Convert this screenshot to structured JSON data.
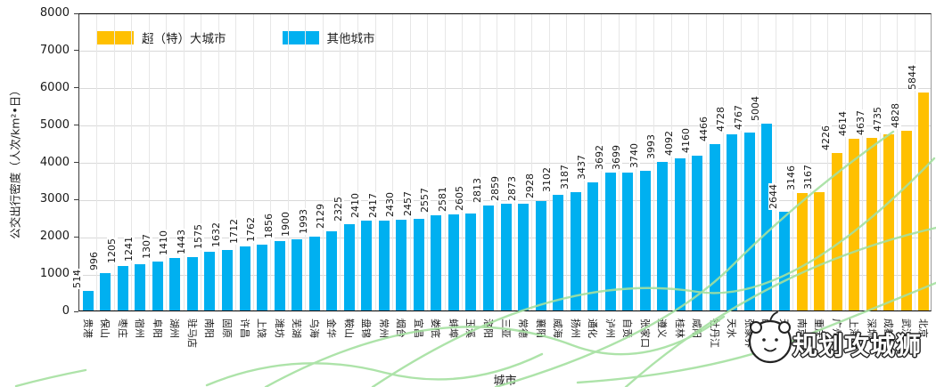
{
  "colors": {
    "mega": "#FFC000",
    "other": "#00B0F0",
    "grid_h": "#d9d9d9",
    "grid_v": "#e7e7e7",
    "watermark_green": "#a5e0a0"
  },
  "chart_data": {
    "type": "bar",
    "title": "",
    "xlabel": "城市",
    "ylabel": "公交出行密度（人次/km²•日）",
    "ylim": [
      0,
      8000
    ],
    "yticks": [
      0,
      1000,
      2000,
      3000,
      4000,
      5000,
      6000,
      7000,
      8000
    ],
    "grid": true,
    "legend_position": "top-left-inside",
    "legend": [
      {
        "label": "超（特）大城市",
        "group": "mega",
        "color": "#FFC000"
      },
      {
        "label": "其他城市",
        "group": "other",
        "color": "#00B0F0"
      }
    ],
    "bars": [
      {
        "city": "贵港",
        "value": 514,
        "group": "other"
      },
      {
        "city": "保山",
        "value": 996,
        "group": "other"
      },
      {
        "city": "枣庄",
        "value": 1205,
        "group": "other"
      },
      {
        "city": "宿州",
        "value": 1241,
        "group": "other"
      },
      {
        "city": "阜阳",
        "value": 1307,
        "group": "other"
      },
      {
        "city": "湖州",
        "value": 1410,
        "group": "other"
      },
      {
        "city": "驻马店",
        "value": 1443,
        "group": "other"
      },
      {
        "city": "南阳",
        "value": 1575,
        "group": "other"
      },
      {
        "city": "固原",
        "value": 1632,
        "group": "other"
      },
      {
        "city": "许昌",
        "value": 1712,
        "group": "other"
      },
      {
        "city": "上饶",
        "value": 1762,
        "group": "other"
      },
      {
        "city": "潍坊",
        "value": 1856,
        "group": "other"
      },
      {
        "city": "芜湖",
        "value": 1900,
        "group": "other"
      },
      {
        "city": "乌海",
        "value": 1993,
        "group": "other"
      },
      {
        "city": "金华",
        "value": 2129,
        "group": "other"
      },
      {
        "city": "鞍山",
        "value": 2325,
        "group": "other"
      },
      {
        "city": "盘锦",
        "value": 2410,
        "group": "other"
      },
      {
        "city": "常州",
        "value": 2417,
        "group": "other"
      },
      {
        "city": "烟台",
        "value": 2430,
        "group": "other"
      },
      {
        "city": "宜昌",
        "value": 2457,
        "group": "other"
      },
      {
        "city": "娄底",
        "value": 2557,
        "group": "other"
      },
      {
        "city": "蚌埠",
        "value": 2581,
        "group": "other"
      },
      {
        "city": "玉溪",
        "value": 2605,
        "group": "other"
      },
      {
        "city": "洛阳",
        "value": 2813,
        "group": "other"
      },
      {
        "city": "三亚",
        "value": 2859,
        "group": "other"
      },
      {
        "city": "常德",
        "value": 2873,
        "group": "other"
      },
      {
        "city": "襄阳",
        "value": 2928,
        "group": "other"
      },
      {
        "city": "威海",
        "value": 3102,
        "group": "other"
      },
      {
        "city": "扬州",
        "value": 3187,
        "group": "other"
      },
      {
        "city": "通化",
        "value": 3437,
        "group": "other"
      },
      {
        "city": "泸州",
        "value": 3692,
        "group": "other"
      },
      {
        "city": "自贡",
        "value": 3699,
        "group": "other"
      },
      {
        "city": "张家口",
        "value": 3740,
        "group": "other"
      },
      {
        "city": "遵义",
        "value": 3993,
        "group": "other"
      },
      {
        "city": "桂林",
        "value": 4092,
        "group": "other"
      },
      {
        "city": "咸阳",
        "value": 4160,
        "group": "other"
      },
      {
        "city": "牡丹江",
        "value": 4466,
        "group": "other"
      },
      {
        "city": "天水",
        "value": 4728,
        "group": "other"
      },
      {
        "city": "张家界",
        "value": 4767,
        "group": "other"
      },
      {
        "city": "西宁",
        "value": 5004,
        "group": "other"
      },
      {
        "city": "天津",
        "value": 2644,
        "group": "other"
      },
      {
        "city": "南京",
        "value": 3146,
        "group": "mega"
      },
      {
        "city": "重庆",
        "value": 3167,
        "group": "mega"
      },
      {
        "city": "广州",
        "value": 4226,
        "group": "mega"
      },
      {
        "city": "上海",
        "value": 4614,
        "group": "mega"
      },
      {
        "city": "深圳",
        "value": 4637,
        "group": "mega"
      },
      {
        "city": "成都",
        "value": 4735,
        "group": "mega"
      },
      {
        "city": "武汉",
        "value": 4828,
        "group": "mega"
      },
      {
        "city": "北京",
        "value": 5844,
        "group": "mega"
      }
    ]
  },
  "watermark": {
    "text": "规划攻城狮"
  }
}
